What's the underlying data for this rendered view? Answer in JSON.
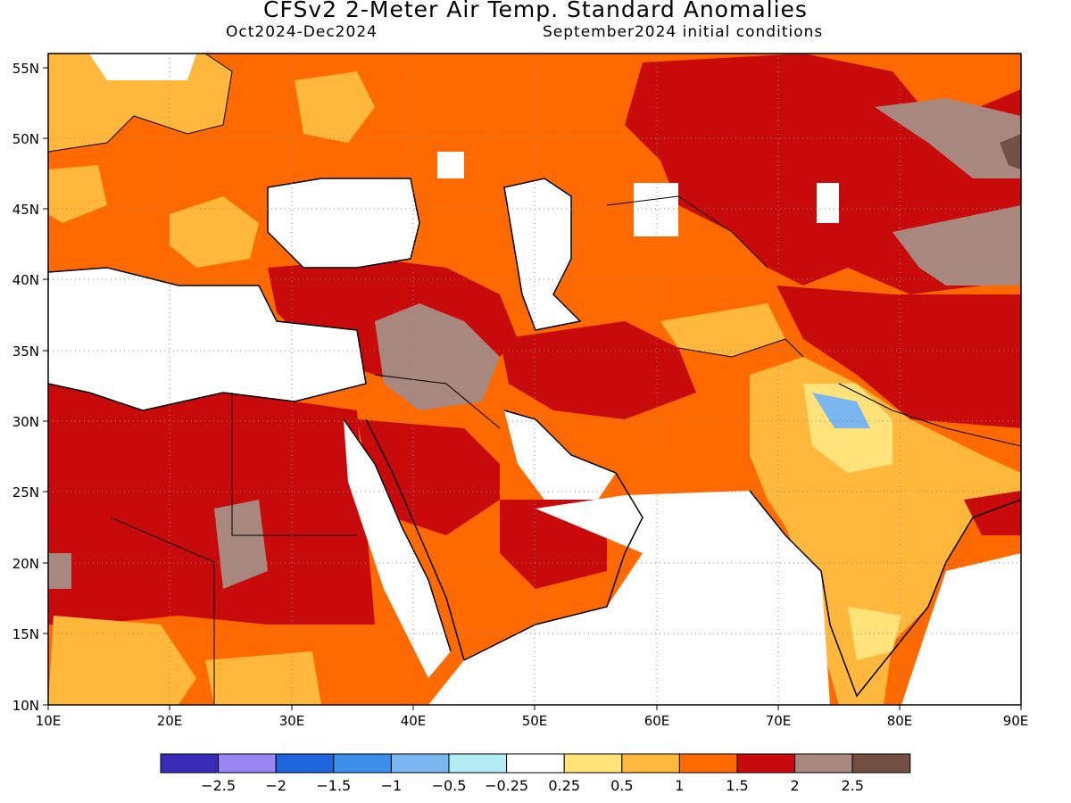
{
  "header": {
    "title": "CFSv2 2-Meter Air Temp. Standard Anomalies",
    "period": "Oct2024-Dec2024",
    "conditions": "September2024 initial conditions"
  },
  "map": {
    "lon_labels": [
      "10E",
      "20E",
      "30E",
      "40E",
      "50E",
      "60E",
      "70E",
      "80E",
      "90E"
    ],
    "lat_labels": [
      "55N",
      "50N",
      "45N",
      "40N",
      "35N",
      "30N",
      "25N",
      "20N",
      "15N",
      "10N"
    ]
  },
  "legend": {
    "colors": [
      "#3a2bb8",
      "#9a86f2",
      "#1e64dc",
      "#3c8ee8",
      "#7ab6f0",
      "#b4ecf4",
      "#ffffff",
      "#ffe27a",
      "#ffb73c",
      "#ff6a00",
      "#c80a0a",
      "#a8877f",
      "#745044"
    ],
    "labels": [
      "−2.5",
      "−2",
      "−1.5",
      "−1",
      "−0.5",
      "−0.25",
      "0.25",
      "0.5",
      "1",
      "1.5",
      "2",
      "2.5"
    ]
  },
  "colors": {
    "sea": "#ffffff",
    "coast": "#000000",
    "anomaly_0_25_to_0_5": "#ffe27a",
    "anomaly_0_5_to_1": "#ffb73c",
    "anomaly_1_to_1_5": "#ff6a00",
    "anomaly_1_5_to_2": "#c80a0a",
    "anomaly_2_to_2_5": "#a8877f",
    "anomaly_above_2_5": "#745044",
    "anomaly_neg": "#7ab6f0"
  }
}
